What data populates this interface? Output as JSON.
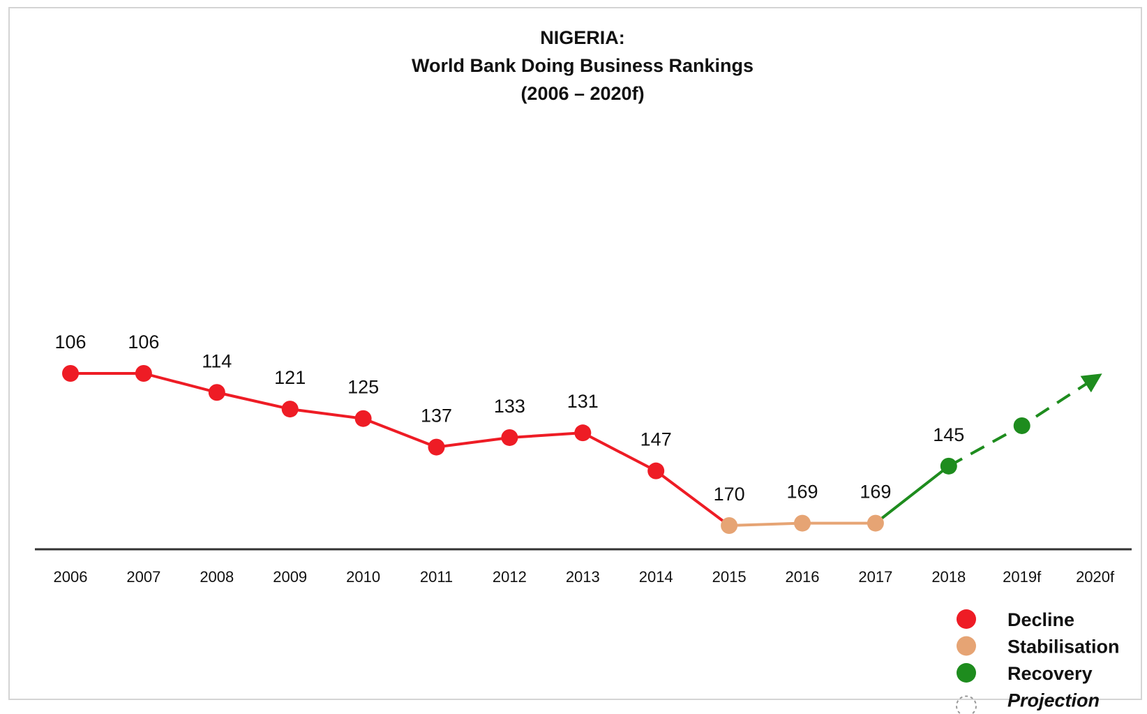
{
  "chart_data": {
    "type": "line",
    "title_lines": [
      "NIGERIA:",
      "World Bank Doing Business Rankings",
      "(2006 – 2020f)"
    ],
    "xlabel": "",
    "ylabel": "",
    "categories": [
      "2006",
      "2007",
      "2008",
      "2009",
      "2010",
      "2011",
      "2012",
      "2013",
      "2014",
      "2015",
      "2016",
      "2017",
      "2018",
      "2019f",
      "2020f"
    ],
    "y_axis_inverted": true,
    "ylim": [
      80,
      180
    ],
    "grid": false,
    "legend_position": "bottom-right",
    "series": [
      {
        "name": "Decline",
        "color": "#ee1c25",
        "points": [
          {
            "x": "2006",
            "y": 106,
            "label": "106"
          },
          {
            "x": "2007",
            "y": 106,
            "label": "106"
          },
          {
            "x": "2008",
            "y": 114,
            "label": "114"
          },
          {
            "x": "2009",
            "y": 121,
            "label": "121"
          },
          {
            "x": "2010",
            "y": 125,
            "label": "125"
          },
          {
            "x": "2011",
            "y": 137,
            "label": "137"
          },
          {
            "x": "2012",
            "y": 133,
            "label": "133"
          },
          {
            "x": "2013",
            "y": 131,
            "label": "131"
          },
          {
            "x": "2014",
            "y": 147,
            "label": "147"
          },
          {
            "x": "2015",
            "y": 170
          }
        ]
      },
      {
        "name": "Stabilisation",
        "color": "#e6a474",
        "points": [
          {
            "x": "2015",
            "y": 170,
            "label": "170"
          },
          {
            "x": "2016",
            "y": 169,
            "label": "169"
          },
          {
            "x": "2017",
            "y": 169,
            "label": "169"
          }
        ]
      },
      {
        "name": "Recovery",
        "color": "#1e8c1e",
        "points": [
          {
            "x": "2017",
            "y": 169
          },
          {
            "x": "2018",
            "y": 145,
            "label": "145"
          }
        ]
      },
      {
        "name": "Projection",
        "color": "#1e8c1e",
        "dashed": true,
        "points": [
          {
            "x": "2018",
            "y": 145
          },
          {
            "x": "2019f",
            "y": 128
          },
          {
            "x": "2020f",
            "y": 108
          }
        ]
      }
    ],
    "legend": [
      {
        "label": "Decline",
        "color": "#ee1c25",
        "style": "filled",
        "italic": false
      },
      {
        "label": "Stabilisation",
        "color": "#e6a474",
        "style": "filled",
        "italic": false
      },
      {
        "label": "Recovery",
        "color": "#1e8c1e",
        "style": "filled",
        "italic": false
      },
      {
        "label": "Projection",
        "color": "#1e8c1e",
        "style": "dashed-outline",
        "italic": true
      }
    ]
  }
}
